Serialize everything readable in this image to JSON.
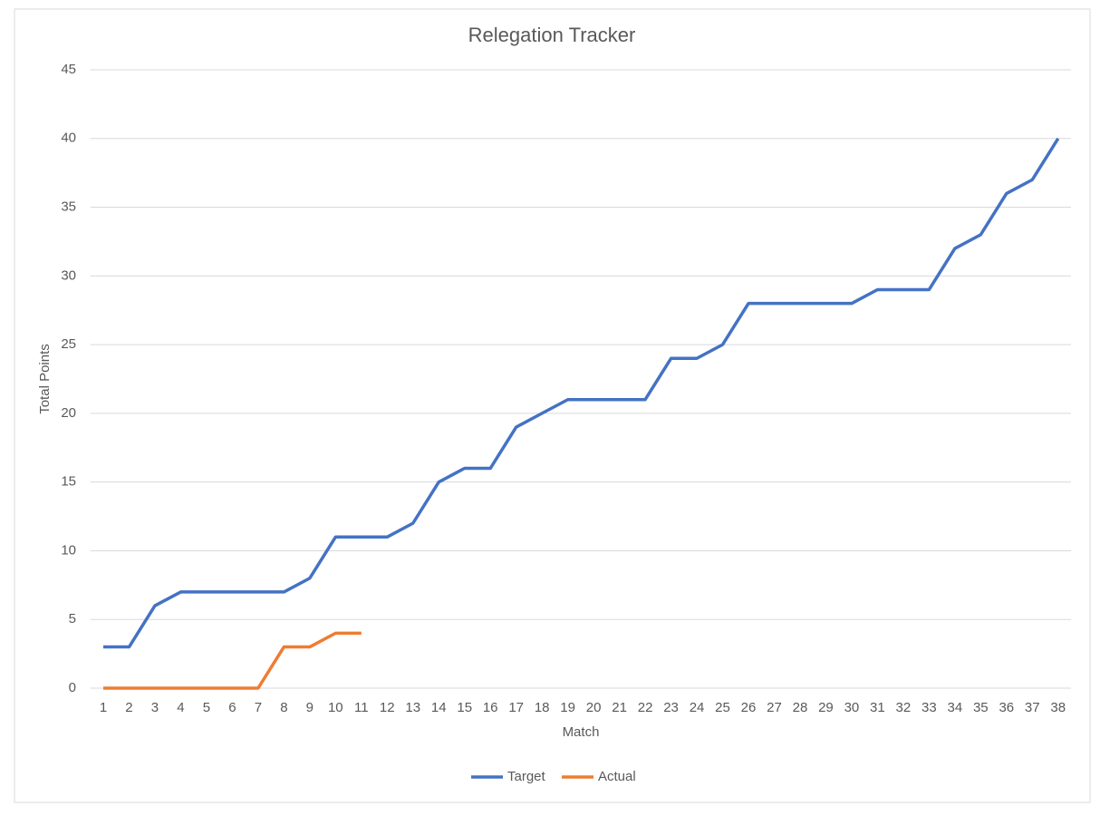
{
  "chart_data": {
    "type": "line",
    "title": "Relegation Tracker",
    "x_label": "Match",
    "y_label": "Total Points",
    "categories": [
      1,
      2,
      3,
      4,
      5,
      6,
      7,
      8,
      9,
      10,
      11,
      12,
      13,
      14,
      15,
      16,
      17,
      18,
      19,
      20,
      21,
      22,
      23,
      24,
      25,
      26,
      27,
      28,
      29,
      30,
      31,
      32,
      33,
      34,
      35,
      36,
      37,
      38
    ],
    "series": [
      {
        "name": "Target",
        "color": "#4472c4",
        "values": [
          3,
          3,
          6,
          7,
          7,
          7,
          7,
          7,
          8,
          11,
          11,
          11,
          12,
          15,
          16,
          16,
          19,
          20,
          21,
          21,
          21,
          21,
          24,
          24,
          25,
          28,
          28,
          28,
          28,
          28,
          29,
          29,
          29,
          32,
          33,
          36,
          37,
          40
        ]
      },
      {
        "name": "Actual",
        "color": "#ed7d31",
        "values": [
          0,
          0,
          0,
          0,
          0,
          0,
          0,
          3,
          3,
          4,
          4,
          null,
          null,
          null,
          null,
          null,
          null,
          null,
          null,
          null,
          null,
          null,
          null,
          null,
          null,
          null,
          null,
          null,
          null,
          null,
          null,
          null,
          null,
          null,
          null,
          null,
          null,
          null
        ]
      }
    ],
    "ylim": [
      0,
      45
    ],
    "yticks": [
      0,
      5,
      10,
      15,
      20,
      25,
      30,
      35,
      40,
      45
    ],
    "grid": true,
    "legend": "bottom"
  }
}
